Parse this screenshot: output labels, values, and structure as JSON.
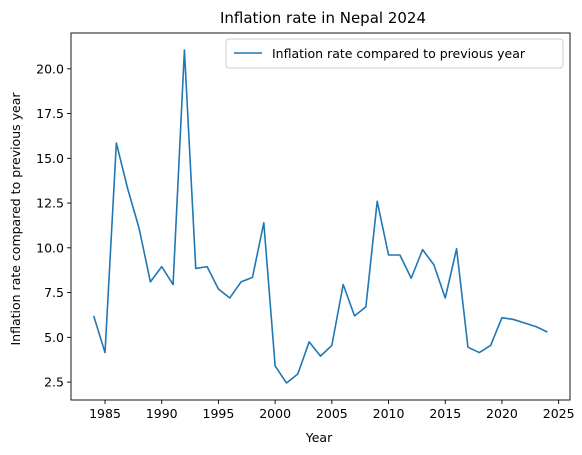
{
  "chart_data": {
    "type": "line",
    "title": "Inflation rate in Nepal 2024",
    "xlabel": "Year",
    "ylabel": "Inflation rate compared to previous year",
    "xlim": [
      1982.0,
      2026.0
    ],
    "ylim": [
      1.5,
      22.0
    ],
    "x_ticks": [
      1985,
      1990,
      1995,
      2000,
      2005,
      2010,
      2015,
      2020,
      2025
    ],
    "y_ticks": [
      2.5,
      5.0,
      7.5,
      10.0,
      12.5,
      15.0,
      17.5,
      20.0
    ],
    "y_tick_labels": [
      "2.5",
      "5.0",
      "7.5",
      "10.0",
      "12.5",
      "15.0",
      "17.5",
      "20.0"
    ],
    "grid": false,
    "legend_position": "upper right",
    "series": [
      {
        "name": "Inflation rate compared to previous year",
        "color": "#1f77b4",
        "x": [
          1984,
          1985,
          1986,
          1987,
          1988,
          1989,
          1990,
          1991,
          1992,
          1993,
          1994,
          1995,
          1996,
          1997,
          1998,
          1999,
          2000,
          2001,
          2002,
          2003,
          2004,
          2005,
          2006,
          2007,
          2008,
          2009,
          2010,
          2011,
          2012,
          2013,
          2014,
          2015,
          2016,
          2017,
          2018,
          2019,
          2020,
          2021,
          2022,
          2023,
          2024
        ],
        "y": [
          6.2,
          4.15,
          15.85,
          13.3,
          11.1,
          8.1,
          8.95,
          7.95,
          21.05,
          8.85,
          8.95,
          7.7,
          7.2,
          8.1,
          8.35,
          11.4,
          3.4,
          2.45,
          2.95,
          4.75,
          3.95,
          4.55,
          7.95,
          6.2,
          6.7,
          12.6,
          9.6,
          9.6,
          8.3,
          9.9,
          9.05,
          7.2,
          9.95,
          4.45,
          4.15,
          4.55,
          6.1,
          6.0,
          5.8,
          5.6,
          5.3
        ]
      }
    ]
  }
}
